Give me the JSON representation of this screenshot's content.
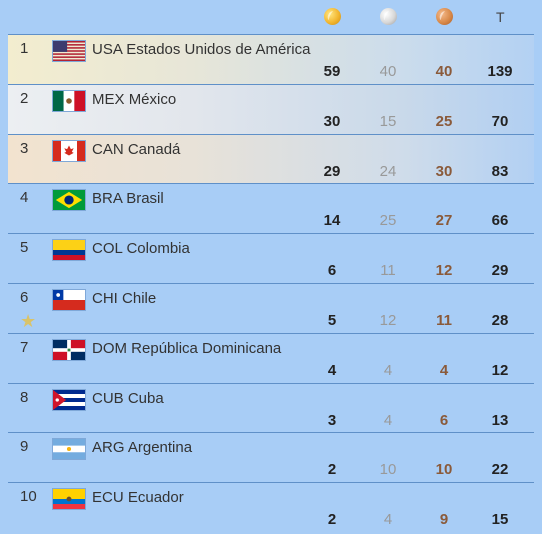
{
  "header": {
    "gold_icon": "gold-medal-icon",
    "silver_icon": "silver-medal-icon",
    "bronze_icon": "bronze-medal-icon",
    "total_label": "T"
  },
  "rows": [
    {
      "rank": "1",
      "code": "USA",
      "name": "Estados Unidos de América",
      "gold": "59",
      "silver": "40",
      "bronze": "40",
      "total": "139",
      "flag": "usa"
    },
    {
      "rank": "2",
      "code": "MEX",
      "name": "México",
      "gold": "30",
      "silver": "15",
      "bronze": "25",
      "total": "70",
      "flag": "mex"
    },
    {
      "rank": "3",
      "code": "CAN",
      "name": "Canadá",
      "gold": "29",
      "silver": "24",
      "bronze": "30",
      "total": "83",
      "flag": "can"
    },
    {
      "rank": "4",
      "code": "BRA",
      "name": "Brasil",
      "gold": "14",
      "silver": "25",
      "bronze": "27",
      "total": "66",
      "flag": "bra"
    },
    {
      "rank": "5",
      "code": "COL",
      "name": "Colombia",
      "gold": "6",
      "silver": "11",
      "bronze": "12",
      "total": "29",
      "flag": "col"
    },
    {
      "rank": "6",
      "code": "CHI",
      "name": "Chile",
      "gold": "5",
      "silver": "12",
      "bronze": "11",
      "total": "28",
      "flag": "chi",
      "host": true
    },
    {
      "rank": "7",
      "code": "DOM",
      "name": "República Dominicana",
      "gold": "4",
      "silver": "4",
      "bronze": "4",
      "total": "12",
      "flag": "dom"
    },
    {
      "rank": "8",
      "code": "CUB",
      "name": "Cuba",
      "gold": "3",
      "silver": "4",
      "bronze": "6",
      "total": "13",
      "flag": "cub"
    },
    {
      "rank": "9",
      "code": "ARG",
      "name": "Argentina",
      "gold": "2",
      "silver": "10",
      "bronze": "10",
      "total": "22",
      "flag": "arg"
    },
    {
      "rank": "10",
      "code": "ECU",
      "name": "Ecuador",
      "gold": "2",
      "silver": "4",
      "bronze": "9",
      "total": "15",
      "flag": "ecu"
    }
  ]
}
